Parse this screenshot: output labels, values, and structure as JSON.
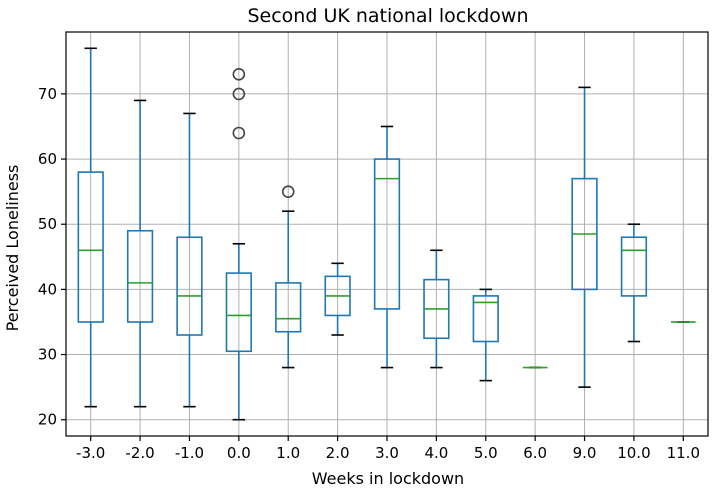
{
  "chart_data": {
    "type": "box",
    "title": "Second UK national lockdown",
    "xlabel": "Weeks in lockdown",
    "ylabel": "Perceived Loneliness",
    "ylim": [
      17.5,
      79.5
    ],
    "yticks": [
      20,
      30,
      40,
      50,
      60,
      70
    ],
    "grid": true,
    "colors": {
      "box": "#1f77b4",
      "median": "#2ca02c",
      "whisker_cap": "#000000",
      "flier": "#444444"
    },
    "categories": [
      "-3.0",
      "-2.0",
      "-1.0",
      "0.0",
      "1.0",
      "2.0",
      "3.0",
      "4.0",
      "5.0",
      "6.0",
      "9.0",
      "10.0",
      "11.0"
    ],
    "boxes": [
      {
        "label": "-3.0",
        "whislo": 22,
        "q1": 35,
        "med": 46,
        "q3": 58,
        "whishi": 77,
        "fliers": []
      },
      {
        "label": "-2.0",
        "whislo": 22,
        "q1": 35,
        "med": 41,
        "q3": 49,
        "whishi": 69,
        "fliers": []
      },
      {
        "label": "-1.0",
        "whislo": 22,
        "q1": 33,
        "med": 39,
        "q3": 48,
        "whishi": 67,
        "fliers": []
      },
      {
        "label": "0.0",
        "whislo": 20,
        "q1": 30.5,
        "med": 36,
        "q3": 42.5,
        "whishi": 47,
        "fliers": [
          64,
          70,
          73
        ]
      },
      {
        "label": "1.0",
        "whislo": 28,
        "q1": 33.5,
        "med": 35.5,
        "q3": 41,
        "whishi": 52,
        "fliers": [
          55
        ]
      },
      {
        "label": "2.0",
        "whislo": 33,
        "q1": 36,
        "med": 39,
        "q3": 42,
        "whishi": 44,
        "fliers": []
      },
      {
        "label": "3.0",
        "whislo": 28,
        "q1": 37,
        "med": 57,
        "q3": 60,
        "whishi": 65,
        "fliers": []
      },
      {
        "label": "4.0",
        "whislo": 28,
        "q1": 32.5,
        "med": 37,
        "q3": 41.5,
        "whishi": 46,
        "fliers": []
      },
      {
        "label": "5.0",
        "whislo": 26,
        "q1": 32,
        "med": 38,
        "q3": 39,
        "whishi": 40,
        "fliers": []
      },
      {
        "label": "6.0",
        "whislo": 28,
        "q1": 28,
        "med": 28,
        "q3": 28,
        "whishi": 28,
        "fliers": []
      },
      {
        "label": "9.0",
        "whislo": 25,
        "q1": 40,
        "med": 48.5,
        "q3": 57,
        "whishi": 71,
        "fliers": []
      },
      {
        "label": "10.0",
        "whislo": 32,
        "q1": 39,
        "med": 46,
        "q3": 48,
        "whishi": 50,
        "fliers": []
      },
      {
        "label": "11.0",
        "whislo": 35,
        "q1": 35,
        "med": 35,
        "q3": 35,
        "whishi": 35,
        "fliers": []
      }
    ]
  }
}
